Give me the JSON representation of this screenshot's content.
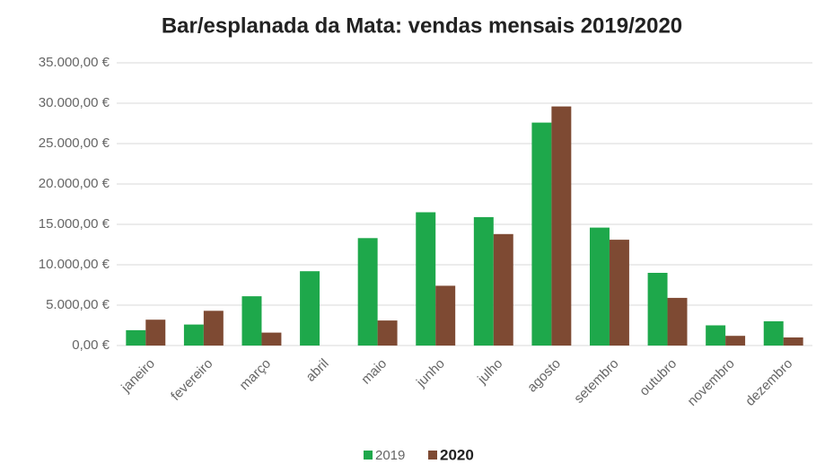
{
  "chart_data": {
    "type": "bar",
    "title": "Bar/esplanada da Mata: vendas mensais 2019/2020",
    "categories": [
      "janeiro",
      "fevereiro",
      "março",
      "abril",
      "maio",
      "junho",
      "julho",
      "agosto",
      "setembro",
      "outubro",
      "novembro",
      "dezembro"
    ],
    "series": [
      {
        "name": "2019",
        "color": "#1ea84b",
        "values": [
          1900,
          2600,
          6100,
          9200,
          13300,
          16500,
          15900,
          27600,
          14600,
          9000,
          2500,
          3000
        ]
      },
      {
        "name": "2020",
        "color": "#7e4a33",
        "values": [
          3200,
          4300,
          1600,
          null,
          3100,
          7400,
          13800,
          29600,
          13100,
          5900,
          1200,
          1000
        ]
      }
    ],
    "ylim": [
      0,
      35000
    ],
    "yticks": [
      {
        "value": 0,
        "label": "0,00 €"
      },
      {
        "value": 5000,
        "label": "5.000,00 €"
      },
      {
        "value": 10000,
        "label": "10.000,00 €"
      },
      {
        "value": 15000,
        "label": "15.000,00 €"
      },
      {
        "value": 20000,
        "label": "20.000,00 €"
      },
      {
        "value": 25000,
        "label": "25.000,00 €"
      },
      {
        "value": 30000,
        "label": "30.000,00 €"
      },
      {
        "value": 35000,
        "label": "35.000,00 €"
      }
    ],
    "grid": true,
    "legend": "bottom"
  }
}
